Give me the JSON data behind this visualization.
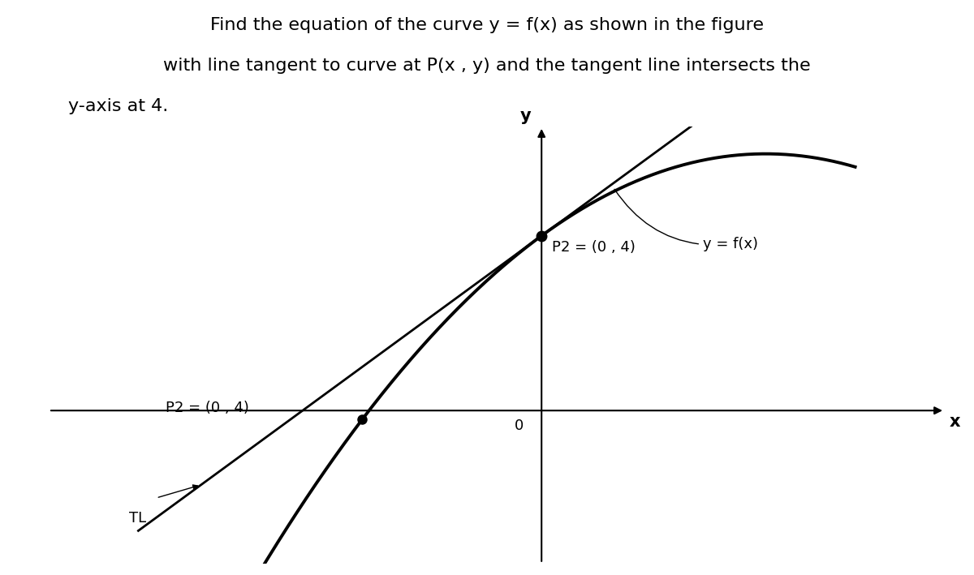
{
  "title_line1": "Find the equation of the curve y = f(x) as shown in the figure",
  "title_line2": "with line tangent to curve at P(x , y) and the tangent line intersects the",
  "title_line3": "y-axis at 4.",
  "bg_color": "#ffffff",
  "axis_color": "#000000",
  "curve_color": "#000000",
  "tangent_color": "#000000",
  "dot_color": "#000000",
  "font_size_title": 16,
  "font_size_labels": 13,
  "xlim": [
    -5.5,
    4.5
  ],
  "ylim": [
    -3.5,
    6.5
  ],
  "origin_x": 0,
  "origin_y": 0,
  "curve_start": -4.0,
  "curve_end": 3.5,
  "tl_x_start": -5.2,
  "tl_x_end": 3.2,
  "tl_slope": 1.4,
  "tl_intercept": 4.0,
  "p_left_x": -2.0,
  "p_right_x": 0.0,
  "p_right_y": 4.0
}
